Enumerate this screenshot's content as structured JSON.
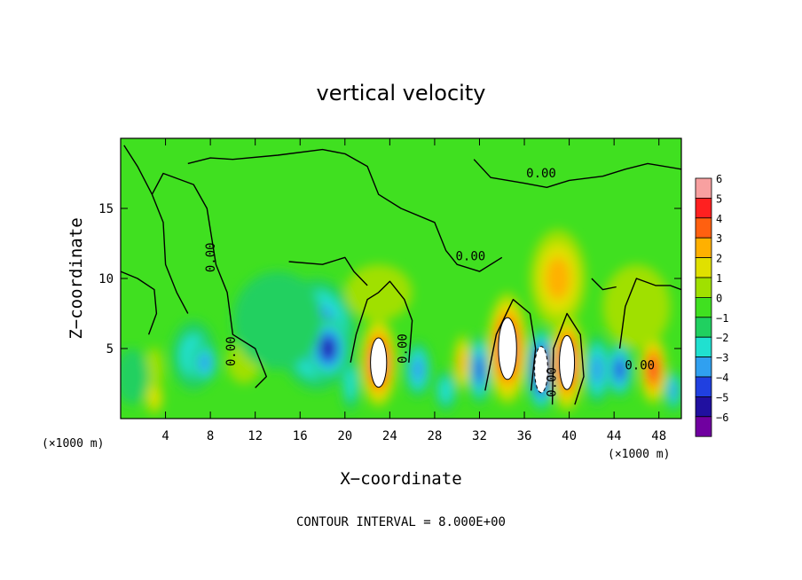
{
  "chart_data": {
    "type": "heatmap",
    "title": "vertical velocity",
    "xlabel": "X−coordinate",
    "ylabel": "Z−coordinate",
    "x_unit_left": "(×1000 m)",
    "x_unit_right": "(×1000 m)",
    "xlim": [
      0,
      50
    ],
    "ylim": [
      0,
      20
    ],
    "x_ticks": [
      4,
      8,
      12,
      16,
      20,
      24,
      28,
      32,
      36,
      40,
      44,
      48
    ],
    "y_ticks": [
      5,
      10,
      15
    ],
    "colorbar": {
      "levels": [
        "6",
        "5",
        "4",
        "3",
        "2",
        "1",
        "0",
        "−1",
        "−2",
        "−3",
        "−4",
        "−5",
        "−6"
      ],
      "colors": [
        "#f8a0a0",
        "#ff2020",
        "#ff6010",
        "#ffb000",
        "#e0e000",
        "#a0e000",
        "#40e020",
        "#20d060",
        "#20e0d0",
        "#30a0f0",
        "#2040e0",
        "#2010a0",
        "#7000a0"
      ]
    },
    "contour_labels": [
      "0.00",
      "0.00",
      "0.00",
      "0.00",
      "0.00",
      "0.00",
      "0.00"
    ],
    "contour_interval_text": "CONTOUR INTERVAL = 8.000E+00",
    "cells": [
      {
        "x": 3.0,
        "z": 3.5,
        "w": 0.6,
        "rx": 0.8,
        "rz": 1.6
      },
      {
        "x": 3.0,
        "z": 1.5,
        "w": 1.5,
        "rx": 0.8,
        "rz": 1.2
      },
      {
        "x": 6.5,
        "z": 4.5,
        "w": -2.0,
        "rx": 2.0,
        "rz": 2.5
      },
      {
        "x": 7.5,
        "z": 4.0,
        "w": -3.0,
        "rx": 1.2,
        "rz": 1.5
      },
      {
        "x": 11.0,
        "z": 4.0,
        "w": 0.5,
        "rx": 1.5,
        "rz": 1.5
      },
      {
        "x": 17.5,
        "z": 6.0,
        "w": -3.5,
        "rx": 3.5,
        "rz": 4.0
      },
      {
        "x": 18.5,
        "z": 5.0,
        "w": -5.0,
        "rx": 1.8,
        "rz": 2.2
      },
      {
        "x": 14.0,
        "z": 7.0,
        "w": -1.0,
        "rx": 4.0,
        "rz": 3.5
      },
      {
        "x": 23.0,
        "z": 4.0,
        "w": 6.0,
        "rx": 1.6,
        "rz": 3.2
      },
      {
        "x": 23.0,
        "z": 9.0,
        "w": 0.5,
        "rx": 3.0,
        "rz": 2.0
      },
      {
        "x": 20.5,
        "z": 2.5,
        "w": -1.5,
        "rx": 0.8,
        "rz": 2.0
      },
      {
        "x": 26.5,
        "z": 3.5,
        "w": -2.5,
        "rx": 1.2,
        "rz": 2.0
      },
      {
        "x": 29.0,
        "z": 2.0,
        "w": -1.5,
        "rx": 1.0,
        "rz": 1.5
      },
      {
        "x": 30.5,
        "z": 4.0,
        "w": 3.0,
        "rx": 0.8,
        "rz": 2.0
      },
      {
        "x": 32.0,
        "z": 3.5,
        "w": -3.5,
        "rx": 1.0,
        "rz": 2.5
      },
      {
        "x": 34.5,
        "z": 5.0,
        "w": 6.0,
        "rx": 1.8,
        "rz": 4.0
      },
      {
        "x": 37.5,
        "z": 3.5,
        "w": -5.5,
        "rx": 1.3,
        "rz": 3.0
      },
      {
        "x": 39.8,
        "z": 4.0,
        "w": 6.0,
        "rx": 1.5,
        "rz": 3.5
      },
      {
        "x": 39.0,
        "z": 10.0,
        "w": 3.0,
        "rx": 2.5,
        "rz": 3.5
      },
      {
        "x": 42.5,
        "z": 3.5,
        "w": -3.0,
        "rx": 1.2,
        "rz": 2.5
      },
      {
        "x": 44.5,
        "z": 3.5,
        "w": -4.0,
        "rx": 1.2,
        "rz": 2.0
      },
      {
        "x": 47.5,
        "z": 3.5,
        "w": 5.0,
        "rx": 1.2,
        "rz": 2.5
      },
      {
        "x": 49.3,
        "z": 2.0,
        "w": -3.0,
        "rx": 0.8,
        "rz": 1.5
      },
      {
        "x": 1.0,
        "z": 3.0,
        "w": -1.0,
        "rx": 1.5,
        "rz": 2.0
      },
      {
        "x": 46.0,
        "z": 8.0,
        "w": 0.6,
        "rx": 3.0,
        "rz": 3.0
      }
    ]
  }
}
